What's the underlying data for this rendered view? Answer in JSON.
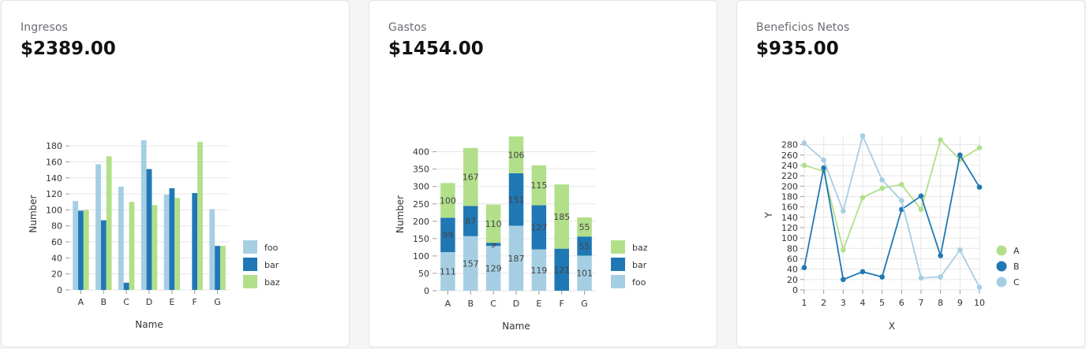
{
  "colors": {
    "foo": "#a6cee3",
    "bar": "#1f78b4",
    "baz": "#b2df8a",
    "A": "#b2df8a",
    "B": "#1f78b4",
    "C": "#a6cee3"
  },
  "cards": [
    {
      "title": "Ingresos",
      "value": "$2389.00",
      "chart_data": {
        "type": "bar",
        "categories": [
          "A",
          "B",
          "C",
          "D",
          "E",
          "F",
          "G"
        ],
        "series": [
          {
            "name": "foo",
            "values": [
              111,
              157,
              129,
              187,
              119,
              0,
              101
            ]
          },
          {
            "name": "bar",
            "values": [
              99,
              87,
              9,
              151,
              127,
              121,
              55
            ]
          },
          {
            "name": "baz",
            "values": [
              100,
              167,
              110,
              106,
              115,
              185,
              55
            ]
          }
        ],
        "xlabel": "Name",
        "ylabel": "Number",
        "ylim": [
          0,
          190
        ],
        "yticks": [
          0,
          20,
          40,
          60,
          80,
          100,
          120,
          140,
          160,
          180
        ],
        "grid": true,
        "legend": "bottom-right"
      }
    },
    {
      "title": "Gastos",
      "value": "$1454.00",
      "chart_data": {
        "type": "bar",
        "stacked": true,
        "categories": [
          "A",
          "B",
          "C",
          "D",
          "E",
          "F",
          "G"
        ],
        "series": [
          {
            "name": "foo",
            "values": [
              111,
              157,
              129,
              187,
              119,
              0,
              101
            ]
          },
          {
            "name": "bar",
            "values": [
              99,
              87,
              9,
              151,
              127,
              121,
              55
            ]
          },
          {
            "name": "baz",
            "values": [
              100,
              167,
              110,
              106,
              115,
              185,
              55
            ]
          }
        ],
        "legend_order": [
          "baz",
          "bar",
          "foo"
        ],
        "xlabel": "Name",
        "ylabel": "Number",
        "ylim": [
          0,
          440
        ],
        "yticks": [
          0,
          50,
          100,
          150,
          200,
          250,
          300,
          350,
          400
        ],
        "grid": true,
        "legend": "bottom-right",
        "data_labels": true
      }
    },
    {
      "title": "Beneficios Netos",
      "value": "$935.00",
      "chart_data": {
        "type": "line",
        "x": [
          1,
          2,
          3,
          4,
          5,
          6,
          7,
          8,
          9,
          10
        ],
        "series": [
          {
            "name": "A",
            "values": [
              240,
              229,
              77,
              178,
              196,
              203,
              155,
              289,
              251,
              274
            ]
          },
          {
            "name": "B",
            "values": [
              43,
              235,
              20,
              35,
              25,
              155,
              181,
              66,
              260,
              198
            ]
          },
          {
            "name": "C",
            "values": [
              283,
              250,
              152,
              297,
              212,
              172,
              23,
              25,
              77,
              5
            ]
          }
        ],
        "xlabel": "X",
        "ylabel": "Y",
        "ylim": [
          0,
          290
        ],
        "yticks": [
          0,
          20,
          40,
          60,
          80,
          100,
          120,
          140,
          160,
          180,
          200,
          220,
          240,
          260,
          280
        ],
        "xlim": [
          1,
          10
        ],
        "grid": true,
        "legend": "bottom-right"
      }
    }
  ]
}
